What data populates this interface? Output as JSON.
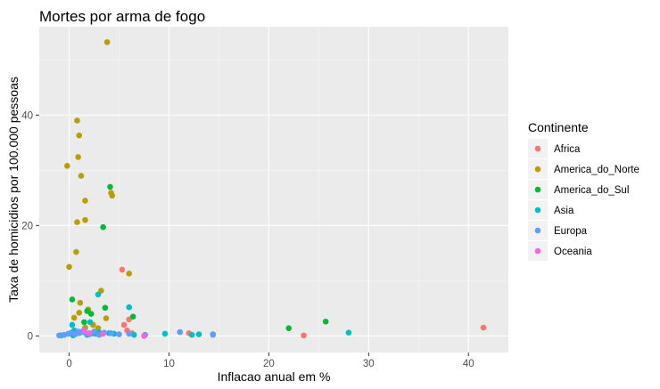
{
  "chart_data": {
    "type": "scatter",
    "title": "Mortes por arma de fogo",
    "xlabel": "Inflacao anual em %",
    "ylabel": "Taxa de homicidios por 100.000 pessoas",
    "xlim": [
      -3,
      44
    ],
    "ylim": [
      -3,
      56
    ],
    "x_ticks": [
      0,
      10,
      20,
      30,
      40
    ],
    "y_ticks": [
      0,
      20,
      40
    ],
    "grid": true,
    "legend": {
      "title": "Continente",
      "position": "right"
    },
    "series": [
      {
        "name": "Africa",
        "color": "#F8766D",
        "points": [
          [
            5.3,
            12.0
          ],
          [
            5.5,
            2.0
          ],
          [
            6.0,
            3.0
          ],
          [
            5.8,
            1.0
          ],
          [
            6.3,
            0.5
          ],
          [
            12.0,
            0.5
          ],
          [
            23.5,
            0.1
          ],
          [
            41.5,
            1.5
          ],
          [
            2.2,
            0.4
          ]
        ]
      },
      {
        "name": "America_do_Norte",
        "color": "#B79F00",
        "points": [
          [
            3.8,
            53.2
          ],
          [
            0.8,
            39.0
          ],
          [
            1.0,
            36.3
          ],
          [
            0.9,
            32.4
          ],
          [
            -0.2,
            30.8
          ],
          [
            1.2,
            29.0
          ],
          [
            4.2,
            25.9
          ],
          [
            4.3,
            25.4
          ],
          [
            1.6,
            24.5
          ],
          [
            1.6,
            21.0
          ],
          [
            0.8,
            20.6
          ],
          [
            0.7,
            15.2
          ],
          [
            0.0,
            12.5
          ],
          [
            6.0,
            11.3
          ],
          [
            3.2,
            8.2
          ],
          [
            1.1,
            6.0
          ],
          [
            1.9,
            4.8
          ],
          [
            1.0,
            4.2
          ],
          [
            0.5,
            3.3
          ],
          [
            3.7,
            3.2
          ],
          [
            2.4,
            2.0
          ],
          [
            1.6,
            1.5
          ],
          [
            2.9,
            1.4
          ]
        ]
      },
      {
        "name": "America_do_Sul",
        "color": "#00BA38",
        "points": [
          [
            4.1,
            27.0
          ],
          [
            3.4,
            19.7
          ],
          [
            0.3,
            6.6
          ],
          [
            3.6,
            5.1
          ],
          [
            1.8,
            4.5
          ],
          [
            2.2,
            4.0
          ],
          [
            6.4,
            3.5
          ],
          [
            22.0,
            1.4
          ],
          [
            25.7,
            2.6
          ],
          [
            1.5,
            2.5
          ]
        ]
      },
      {
        "name": "Asia",
        "color": "#00BFC4",
        "points": [
          [
            2.9,
            7.5
          ],
          [
            6.0,
            5.2
          ],
          [
            2.1,
            2.5
          ],
          [
            0.3,
            2.0
          ],
          [
            0.5,
            1.0
          ],
          [
            1.4,
            0.9
          ],
          [
            3.0,
            0.6
          ],
          [
            4.5,
            0.4
          ],
          [
            6.5,
            0.2
          ],
          [
            7.6,
            0.2
          ],
          [
            9.6,
            0.4
          ],
          [
            12.3,
            0.2
          ],
          [
            13.0,
            0.3
          ],
          [
            14.4,
            0.3
          ],
          [
            28.0,
            0.6
          ],
          [
            -0.8,
            0.1
          ],
          [
            0.4,
            0.1
          ],
          [
            1.8,
            0.2
          ],
          [
            2.6,
            0.4
          ],
          [
            4.0,
            0.5
          ]
        ]
      },
      {
        "name": "Europa",
        "color": "#619CFF",
        "points": [
          [
            -1.0,
            0.1
          ],
          [
            -0.5,
            0.2
          ],
          [
            -0.1,
            0.4
          ],
          [
            0.2,
            0.6
          ],
          [
            0.6,
            0.3
          ],
          [
            1.0,
            0.5
          ],
          [
            1.3,
            0.7
          ],
          [
            1.7,
            0.4
          ],
          [
            2.0,
            0.3
          ],
          [
            2.5,
            0.8
          ],
          [
            3.0,
            0.2
          ],
          [
            3.5,
            0.6
          ],
          [
            4.2,
            0.5
          ],
          [
            5.0,
            0.3
          ],
          [
            6.0,
            0.4
          ],
          [
            7.6,
            0.2
          ],
          [
            11.1,
            0.7
          ],
          [
            14.4,
            0.2
          ],
          [
            0.9,
            0.8
          ],
          [
            1.5,
            1.0
          ]
        ]
      },
      {
        "name": "Oceania",
        "color": "#F564E3",
        "points": [
          [
            1.5,
            0.9
          ],
          [
            2.0,
            0.5
          ],
          [
            3.4,
            0.4
          ],
          [
            7.5,
            0.0
          ]
        ]
      }
    ]
  }
}
